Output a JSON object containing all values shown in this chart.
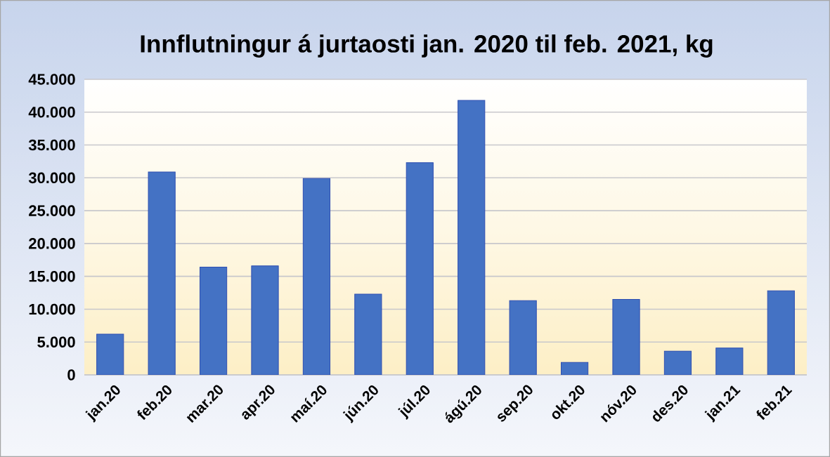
{
  "chart_data": {
    "type": "bar",
    "title": "Innflutningur á jurtaosti jan. 2020 til feb. 2021, kg",
    "categories": [
      "jan.20",
      "feb.20",
      "mar.20",
      "apr.20",
      "maí.20",
      "jún.20",
      "júl.20",
      "ágú.20",
      "sep.20",
      "okt.20",
      "nóv.20",
      "des.20",
      "jan.21",
      "feb.21"
    ],
    "values": [
      6200,
      30900,
      16400,
      16600,
      29900,
      12300,
      32300,
      41800,
      11300,
      1900,
      11500,
      3600,
      4100,
      12800
    ],
    "color": "#4472c4",
    "ylim": [
      0,
      45000
    ],
    "yticks": [
      0,
      {
        "value": 5000,
        "label": "5.000"
      },
      {
        "value": 10000,
        "label": "10.000"
      },
      {
        "value": 15000,
        "label": "15.000"
      },
      {
        "value": 20000,
        "label": "20.000"
      },
      {
        "value": 25000,
        "label": "25.000"
      },
      {
        "value": 30000,
        "label": "30.000"
      },
      {
        "value": 35000,
        "label": "35.000"
      },
      {
        "value": 40000,
        "label": "40.000"
      },
      {
        "value": 45000,
        "label": "45.000"
      }
    ],
    "grid": "y"
  }
}
